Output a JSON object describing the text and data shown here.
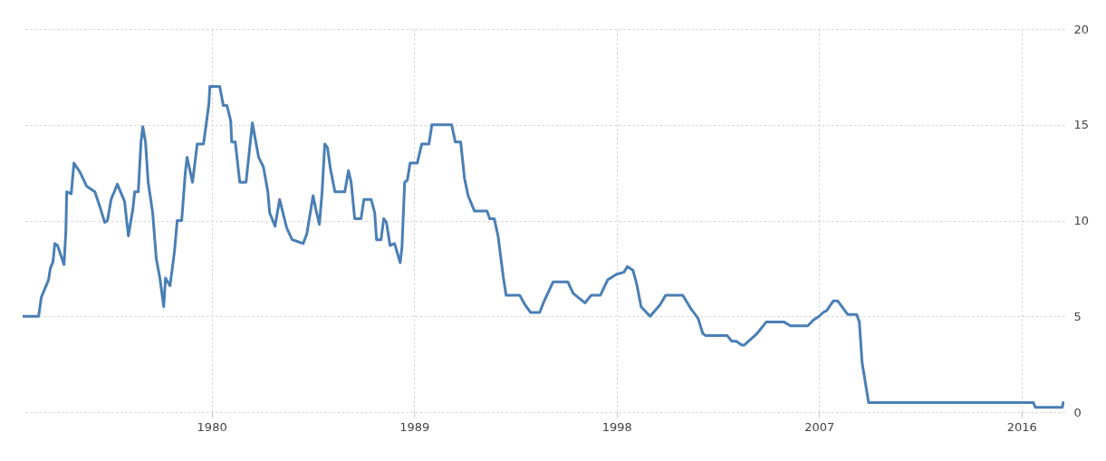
{
  "chart_data": {
    "type": "line",
    "x": [
      1971.62,
      1972.31,
      1972.43,
      1972.75,
      1972.83,
      1972.95,
      1973.03,
      1973.15,
      1973.44,
      1973.52,
      1973.56,
      1973.76,
      1973.88,
      1974.16,
      1974.44,
      1974.81,
      1975.01,
      1975.25,
      1975.37,
      1975.53,
      1975.81,
      1976.13,
      1976.3,
      1976.5,
      1976.58,
      1976.74,
      1976.86,
      1976.94,
      1977.06,
      1977.18,
      1977.38,
      1977.54,
      1977.7,
      1977.87,
      1977.95,
      1978.15,
      1978.35,
      1978.47,
      1978.67,
      1978.83,
      1978.91,
      1979.15,
      1979.36,
      1979.64,
      1979.88,
      1979.92,
      1980.36,
      1980.52,
      1980.68,
      1980.85,
      1980.89,
      1981.05,
      1981.25,
      1981.53,
      1981.81,
      1982.09,
      1982.3,
      1982.5,
      1982.58,
      1982.82,
      1983.02,
      1983.34,
      1983.58,
      1983.83,
      1984.07,
      1984.23,
      1984.51,
      1984.63,
      1984.79,
      1984.91,
      1985.03,
      1985.15,
      1985.28,
      1985.48,
      1985.92,
      1986.08,
      1986.2,
      1986.36,
      1986.64,
      1986.77,
      1987.09,
      1987.25,
      1987.33,
      1987.53,
      1987.65,
      1987.77,
      1987.93,
      1988.13,
      1988.38,
      1988.46,
      1988.58,
      1988.7,
      1988.82,
      1989.14,
      1989.34,
      1989.66,
      1989.79,
      1990.67,
      1990.83,
      1991.07,
      1991.24,
      1991.4,
      1991.68,
      1992.24,
      1992.36,
      1992.56,
      1992.73,
      1992.97,
      1993.09,
      1993.69,
      1993.93,
      1994.18,
      1994.58,
      1994.78,
      1995.02,
      1995.18,
      1995.83,
      1996.07,
      1996.59,
      1996.87,
      1997.28,
      1997.6,
      1998.0,
      1998.32,
      1998.48,
      1998.73,
      1998.89,
      1999.09,
      1999.49,
      1999.93,
      2000.18,
      2000.94,
      2001.3,
      2001.62,
      2001.83,
      2001.95,
      2002.91,
      2003.12,
      2003.32,
      2003.56,
      2003.68,
      2003.96,
      2004.24,
      2004.65,
      2005.45,
      2005.73,
      2006.5,
      2006.74,
      2007.0,
      2007.18,
      2007.34,
      2007.63,
      2007.83,
      2008.27,
      2008.67,
      2008.79,
      2008.91,
      2009.2,
      2016.52,
      2016.61,
      2017.81,
      2017.85
    ],
    "series": [
      {
        "color": "#4a7fb5",
        "values": [
          5,
          5,
          6,
          6.9,
          7.5,
          7.85,
          8.8,
          8.7,
          7.7,
          9.4,
          11.5,
          11.4,
          13,
          12.5,
          11.8,
          11.5,
          10.8,
          9.9,
          10,
          11.1,
          11.9,
          11,
          9.2,
          10.6,
          11.5,
          11.5,
          14.1,
          14.9,
          14.1,
          12,
          10.4,
          8,
          7,
          5.5,
          7,
          6.6,
          8.4,
          10,
          10,
          12.5,
          13.3,
          12,
          14,
          14,
          16.1,
          17,
          17,
          16,
          16,
          15.2,
          14.1,
          14.1,
          12,
          12,
          15.1,
          13.3,
          12.8,
          11.5,
          10.4,
          9.7,
          11.1,
          9.6,
          9,
          8.9,
          8.8,
          9.3,
          11.3,
          10.6,
          9.8,
          11.5,
          14,
          13.8,
          12.7,
          11.5,
          11.5,
          12.6,
          12,
          10.1,
          10.1,
          11.1,
          11.1,
          10.4,
          9,
          9,
          10.1,
          9.9,
          8.7,
          8.8,
          7.8,
          8.6,
          12,
          12.1,
          13,
          13,
          14,
          14,
          15,
          15,
          14.1,
          14.1,
          12.2,
          11.3,
          10.5,
          10.5,
          10.1,
          10.1,
          9.2,
          7,
          6.1,
          6.1,
          5.6,
          5.2,
          5.2,
          5.8,
          6.4,
          6.8,
          6.8,
          6.2,
          5.7,
          6.1,
          6.1,
          6.9,
          7.2,
          7.3,
          7.6,
          7.4,
          6.7,
          5.5,
          5,
          5.6,
          6.1,
          6.1,
          5.4,
          4.9,
          4.1,
          4,
          4,
          3.7,
          3.7,
          3.5,
          3.5,
          3.8,
          4.1,
          4.7,
          4.7,
          4.5,
          4.5,
          4.8,
          5,
          5.2,
          5.3,
          5.8,
          5.8,
          5.1,
          5.1,
          4.7,
          2.6,
          0.5,
          0.5,
          0.25,
          0.25,
          0.5
        ]
      }
    ],
    "xlim": [
      1971.6,
      2017.9
    ],
    "xticks": [
      1980,
      1989,
      1998,
      2007,
      2016
    ],
    "ylim": [
      0,
      20
    ],
    "yticks": [
      0,
      5,
      10,
      15,
      20
    ],
    "grid": true
  }
}
